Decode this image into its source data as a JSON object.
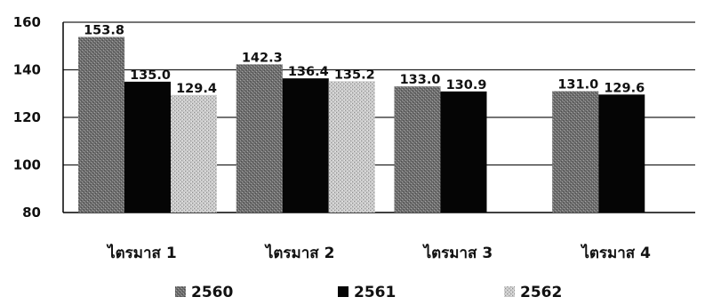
{
  "chart_data": {
    "type": "bar",
    "categories": [
      "ไตรมาส 1",
      "ไตรมาส 2",
      "ไตรมาส 3",
      "ไตรมาส 4"
    ],
    "series": [
      {
        "name": "2560",
        "values": [
          153.8,
          142.3,
          133.0,
          131.0
        ],
        "value_labels": [
          "153.8",
          "142.3",
          "133.0",
          "131.0"
        ]
      },
      {
        "name": "2561",
        "values": [
          135.0,
          136.4,
          130.9,
          129.6
        ],
        "value_labels": [
          "135.0",
          "136.4",
          "130.9",
          "129.6"
        ]
      },
      {
        "name": "2562",
        "values": [
          129.4,
          135.2,
          null,
          null
        ],
        "value_labels": [
          "129.4",
          "135.2",
          "",
          ""
        ]
      }
    ],
    "ylim": [
      80,
      160
    ],
    "yticks": [
      80,
      100,
      120,
      140,
      160
    ],
    "grid": true,
    "legend_position": "bottom",
    "colors": {
      "2560": "#7a7a7a",
      "2561": "#000000",
      "2562": "#c4c4c4"
    }
  }
}
